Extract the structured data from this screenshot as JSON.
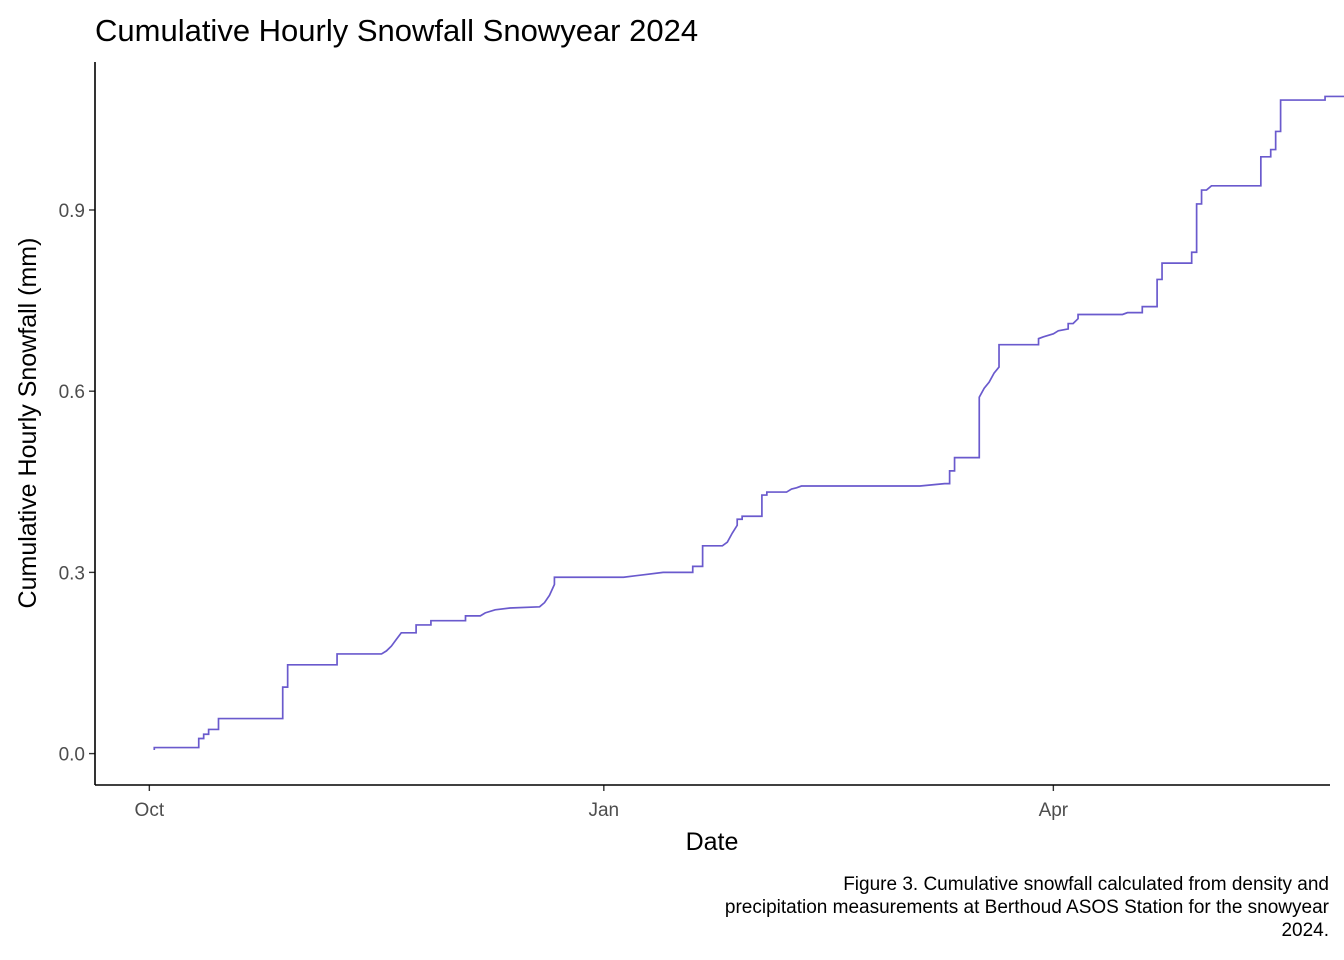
{
  "chart_data": {
    "type": "line",
    "step": true,
    "title": "Cumulative Hourly Snowfall Snowyear 2024",
    "xlabel": "Date",
    "ylabel": "Cumulative Hourly Snowfall (mm)",
    "caption_lines": [
      "Figure 3. Cumulative snowfall calculated from density and",
      "precipitation measurements at Berthoud ASOS Station for the snowyear",
      "2024."
    ],
    "x_axis": {
      "ticks": [
        {
          "label": "Oct",
          "date": "2023-10-01"
        },
        {
          "label": "Jan",
          "date": "2024-01-01"
        },
        {
          "label": "Apr",
          "date": "2024-04-01"
        }
      ],
      "range": [
        "2023-09-20",
        "2024-05-27"
      ]
    },
    "y_axis": {
      "ticks": [
        {
          "label": "0.0",
          "value": 0.0
        },
        {
          "label": "0.3",
          "value": 0.3
        },
        {
          "label": "0.6",
          "value": 0.6
        },
        {
          "label": "0.9",
          "value": 0.9
        }
      ],
      "range": [
        -0.052,
        1.145
      ]
    },
    "grid": false,
    "legend": "none",
    "line_color": "#6a5acd",
    "series": [
      {
        "points": [
          [
            "2023-10-02",
            0.006
          ],
          [
            "2023-10-02",
            0.01
          ],
          [
            "2023-10-11",
            0.01
          ],
          [
            "2023-10-11",
            0.025
          ],
          [
            "2023-10-12",
            0.025
          ],
          [
            "2023-10-12",
            0.032
          ],
          [
            "2023-10-13",
            0.032
          ],
          [
            "2023-10-13",
            0.04
          ],
          [
            "2023-10-15",
            0.04
          ],
          [
            "2023-10-15",
            0.058
          ],
          [
            "2023-10-28",
            0.058
          ],
          [
            "2023-10-28",
            0.11
          ],
          [
            "2023-10-29",
            0.11
          ],
          [
            "2023-10-29",
            0.147
          ],
          [
            "2023-11-08",
            0.147
          ],
          [
            "2023-11-08",
            0.165
          ],
          [
            "2023-11-17",
            0.165
          ],
          [
            "2023-11-18",
            0.17
          ],
          [
            "2023-11-19",
            0.178
          ],
          [
            "2023-11-20",
            0.189
          ],
          [
            "2023-11-21",
            0.2
          ],
          [
            "2023-11-24",
            0.2
          ],
          [
            "2023-11-24",
            0.213
          ],
          [
            "2023-11-27",
            0.213
          ],
          [
            "2023-11-27",
            0.22
          ],
          [
            "2023-12-04",
            0.22
          ],
          [
            "2023-12-04",
            0.228
          ],
          [
            "2023-12-07",
            0.228
          ],
          [
            "2023-12-08",
            0.233
          ],
          [
            "2023-12-10",
            0.238
          ],
          [
            "2023-12-13",
            0.241
          ],
          [
            "2023-12-19",
            0.243
          ],
          [
            "2023-12-20",
            0.25
          ],
          [
            "2023-12-21",
            0.262
          ],
          [
            "2023-12-22",
            0.28
          ],
          [
            "2023-12-22",
            0.292
          ],
          [
            "2024-01-05",
            0.292
          ],
          [
            "2024-01-09",
            0.296
          ],
          [
            "2024-01-13",
            0.3
          ],
          [
            "2024-01-19",
            0.3
          ],
          [
            "2024-01-19",
            0.31
          ],
          [
            "2024-01-21",
            0.31
          ],
          [
            "2024-01-21",
            0.344
          ],
          [
            "2024-01-25",
            0.344
          ],
          [
            "2024-01-26",
            0.35
          ],
          [
            "2024-01-27",
            0.365
          ],
          [
            "2024-01-28",
            0.378
          ],
          [
            "2024-01-28",
            0.388
          ],
          [
            "2024-01-29",
            0.388
          ],
          [
            "2024-01-29",
            0.393
          ],
          [
            "2024-02-02",
            0.393
          ],
          [
            "2024-02-02",
            0.428
          ],
          [
            "2024-02-03",
            0.428
          ],
          [
            "2024-02-03",
            0.433
          ],
          [
            "2024-02-07",
            0.433
          ],
          [
            "2024-02-08",
            0.438
          ],
          [
            "2024-02-09",
            0.44
          ],
          [
            "2024-02-10",
            0.443
          ],
          [
            "2024-03-05",
            0.443
          ],
          [
            "2024-03-10",
            0.447
          ],
          [
            "2024-03-11",
            0.447
          ],
          [
            "2024-03-11",
            0.468
          ],
          [
            "2024-03-12",
            0.468
          ],
          [
            "2024-03-12",
            0.49
          ],
          [
            "2024-03-17",
            0.49
          ],
          [
            "2024-03-17",
            0.59
          ],
          [
            "2024-03-18",
            0.605
          ],
          [
            "2024-03-19",
            0.615
          ],
          [
            "2024-03-20",
            0.63
          ],
          [
            "2024-03-21",
            0.64
          ],
          [
            "2024-03-21",
            0.677
          ],
          [
            "2024-03-29",
            0.677
          ],
          [
            "2024-03-29",
            0.687
          ],
          [
            "2024-03-30",
            0.69
          ],
          [
            "2024-04-01",
            0.695
          ],
          [
            "2024-04-02",
            0.7
          ],
          [
            "2024-04-04",
            0.703
          ],
          [
            "2024-04-04",
            0.712
          ],
          [
            "2024-04-05",
            0.712
          ],
          [
            "2024-04-06",
            0.72
          ],
          [
            "2024-04-06",
            0.727
          ],
          [
            "2024-04-15",
            0.727
          ],
          [
            "2024-04-16",
            0.73
          ],
          [
            "2024-04-19",
            0.73
          ],
          [
            "2024-04-19",
            0.74
          ],
          [
            "2024-04-22",
            0.74
          ],
          [
            "2024-04-22",
            0.785
          ],
          [
            "2024-04-23",
            0.785
          ],
          [
            "2024-04-23",
            0.812
          ],
          [
            "2024-04-29",
            0.812
          ],
          [
            "2024-04-29",
            0.83
          ],
          [
            "2024-04-30",
            0.83
          ],
          [
            "2024-04-30",
            0.91
          ],
          [
            "2024-05-01",
            0.91
          ],
          [
            "2024-05-01",
            0.933
          ],
          [
            "2024-05-02",
            0.933
          ],
          [
            "2024-05-03",
            0.94
          ],
          [
            "2024-05-13",
            0.94
          ],
          [
            "2024-05-13",
            0.988
          ],
          [
            "2024-05-15",
            0.988
          ],
          [
            "2024-05-15",
            1.0
          ],
          [
            "2024-05-16",
            1.0
          ],
          [
            "2024-05-16",
            1.03
          ],
          [
            "2024-05-17",
            1.03
          ],
          [
            "2024-05-17",
            1.082
          ],
          [
            "2024-05-26",
            1.082
          ],
          [
            "2024-05-26",
            1.088
          ],
          [
            "2024-05-31",
            1.088
          ]
        ]
      }
    ]
  }
}
